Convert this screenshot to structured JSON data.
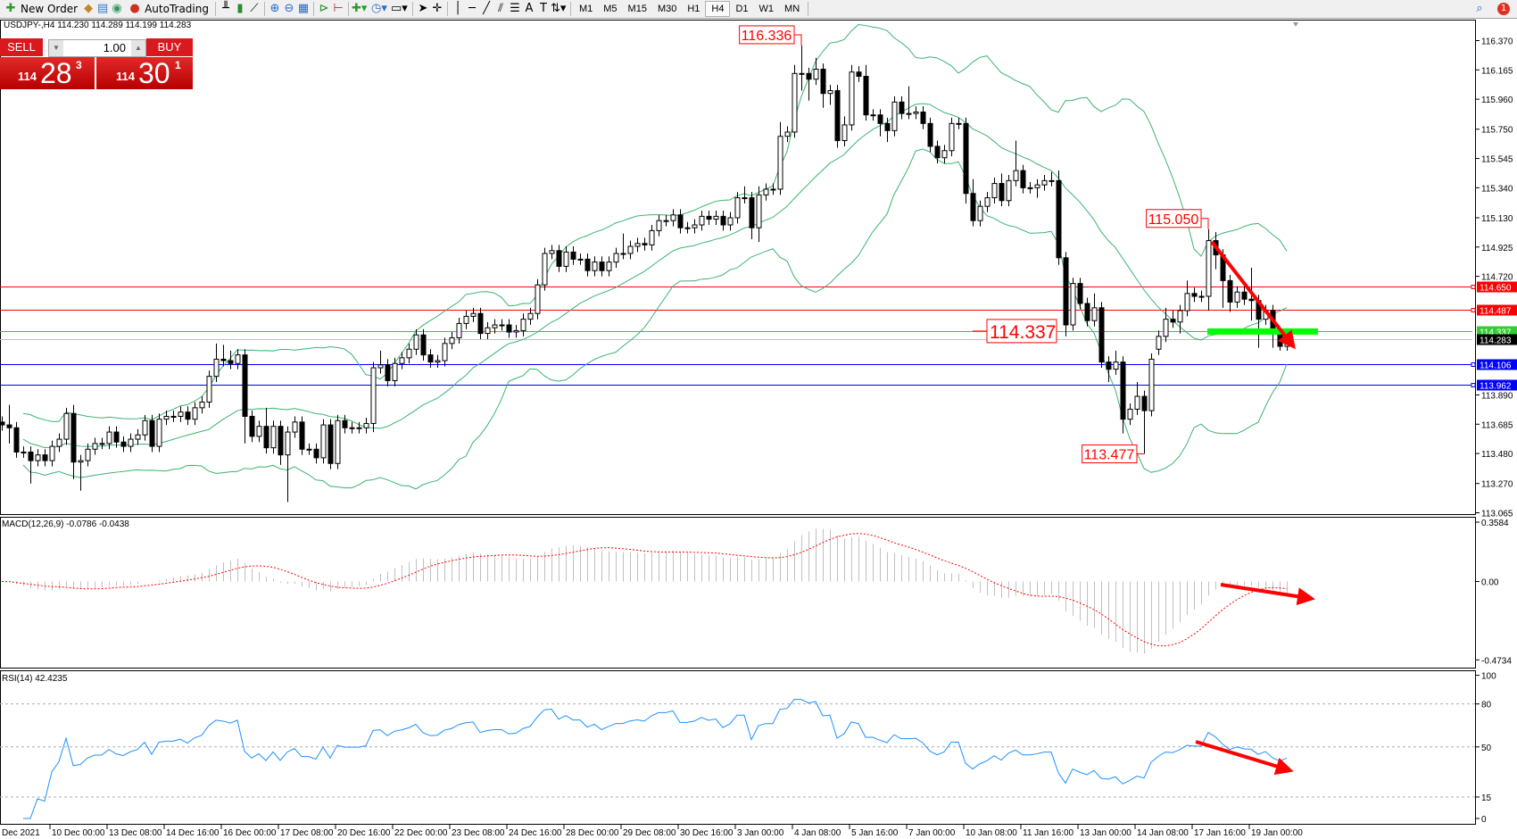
{
  "toolbar": {
    "new_order": "New Order",
    "autotrading": "AutoTrading",
    "timeframes": [
      "M1",
      "M5",
      "M15",
      "M30",
      "H1",
      "H4",
      "D1",
      "W1",
      "MN"
    ],
    "selected_timeframe": "H4",
    "notification_count": "1"
  },
  "symbol_line": "USDJPY-,H4  114.230 114.289 114.199 114.283",
  "one_click": {
    "sell_label": "SELL",
    "buy_label": "BUY",
    "lots": "1.00",
    "sell_price": {
      "big_figure": "114",
      "pips": "28",
      "point": "3"
    },
    "buy_price": {
      "big_figure": "114",
      "pips": "30",
      "point": "1"
    },
    "color": "#d9191e"
  },
  "chart_data": {
    "type": "candlestick",
    "price_axis_ticks": [
      "116.370",
      "116.165",
      "115.960",
      "115.750",
      "115.545",
      "115.340",
      "115.130",
      "114.925",
      "114.720",
      "113.890",
      "113.685",
      "113.480",
      "113.270",
      "113.065"
    ],
    "ylim": [
      113.065,
      116.37
    ],
    "time_labels": [
      "Dec 2021",
      "10 Dec 00:00",
      "13 Dec 08:00",
      "14 Dec 16:00",
      "16 Dec 00:00",
      "17 Dec 08:00",
      "20 Dec 16:00",
      "22 Dec 00:00",
      "23 Dec 08:00",
      "24 Dec 16:00",
      "28 Dec 00:00",
      "29 Dec 08:00",
      "30 Dec 16:00",
      "3 Jan 00:00",
      "4 Jan 08:00",
      "5 Jan 16:00",
      "7 Jan 00:00",
      "10 Jan 08:00",
      "11 Jan 16:00",
      "13 Jan 00:00",
      "14 Jan 08:00",
      "17 Jan 16:00",
      "19 Jan 00:00"
    ],
    "hlines": [
      {
        "price": 114.65,
        "label": "114.650",
        "color": "#ff0000"
      },
      {
        "price": 114.487,
        "label": "114.487",
        "color": "#ff0000"
      },
      {
        "price": 114.337,
        "label": "114.337",
        "color": "#32cd32"
      },
      {
        "price": 114.283,
        "label": "114.283",
        "color": "#000000",
        "line": "#c0c0c0"
      },
      {
        "price": 114.106,
        "label": "114.106",
        "color": "#0000ff"
      },
      {
        "price": 113.962,
        "label": "113.962",
        "color": "#0000ff"
      }
    ],
    "price_callouts": [
      {
        "label": "116.336",
        "bar": 112
      },
      {
        "label": "115.050",
        "bar": 169
      },
      {
        "label": "113.477",
        "bar": 160
      }
    ],
    "level_callout": {
      "label": "114.337",
      "price": 114.337
    },
    "support_zone": {
      "price": 114.337,
      "color": "#00ff00"
    },
    "band_color": "#3cb371",
    "arrow_color": "#ff0000",
    "ohlc": [
      [
        113.7,
        113.74,
        113.64,
        113.68
      ],
      [
        113.68,
        113.82,
        113.55,
        113.66
      ],
      [
        113.66,
        113.7,
        113.45,
        113.49
      ],
      [
        113.49,
        113.53,
        113.45,
        113.49
      ],
      [
        113.49,
        113.53,
        113.27,
        113.43
      ],
      [
        113.43,
        113.51,
        113.39,
        113.47
      ],
      [
        113.47,
        113.51,
        113.39,
        113.43
      ],
      [
        113.43,
        113.57,
        113.39,
        113.53
      ],
      [
        113.53,
        113.62,
        113.49,
        113.58
      ],
      [
        113.58,
        113.8,
        113.54,
        113.76
      ],
      [
        113.76,
        113.82,
        113.3,
        113.42
      ],
      [
        113.42,
        113.47,
        113.22,
        113.43
      ],
      [
        113.43,
        113.55,
        113.39,
        113.51
      ],
      [
        113.51,
        113.59,
        113.47,
        113.55
      ],
      [
        113.55,
        113.59,
        113.51,
        113.55
      ],
      [
        113.55,
        113.67,
        113.51,
        113.63
      ],
      [
        113.63,
        113.67,
        113.52,
        113.56
      ],
      [
        113.56,
        113.6,
        113.49,
        113.53
      ],
      [
        113.53,
        113.62,
        113.49,
        113.58
      ],
      [
        113.58,
        113.65,
        113.54,
        113.61
      ],
      [
        113.61,
        113.75,
        113.57,
        113.71
      ],
      [
        113.71,
        113.75,
        113.49,
        113.53
      ],
      [
        113.53,
        113.76,
        113.49,
        113.72
      ],
      [
        113.72,
        113.78,
        113.68,
        113.74
      ],
      [
        113.74,
        113.78,
        113.7,
        113.74
      ],
      [
        113.74,
        113.81,
        113.7,
        113.77
      ],
      [
        113.77,
        113.81,
        113.68,
        113.72
      ],
      [
        113.72,
        113.84,
        113.68,
        113.8
      ],
      [
        113.8,
        113.88,
        113.76,
        113.84
      ],
      [
        113.84,
        114.06,
        113.8,
        114.02
      ],
      [
        114.02,
        114.25,
        113.98,
        114.14
      ],
      [
        114.14,
        114.24,
        114.09,
        114.13
      ],
      [
        114.13,
        114.2,
        114.07,
        114.11
      ],
      [
        114.11,
        114.21,
        114.07,
        114.17
      ],
      [
        114.17,
        114.21,
        113.55,
        113.74
      ],
      [
        113.74,
        113.78,
        113.56,
        113.6
      ],
      [
        113.6,
        113.71,
        113.56,
        113.67
      ],
      [
        113.67,
        113.8,
        113.48,
        113.52
      ],
      [
        113.52,
        113.71,
        113.48,
        113.67
      ],
      [
        113.67,
        113.71,
        113.4,
        113.47
      ],
      [
        113.47,
        113.67,
        113.14,
        113.63
      ],
      [
        113.63,
        113.74,
        113.59,
        113.7
      ],
      [
        113.7,
        113.74,
        113.47,
        113.51
      ],
      [
        113.51,
        113.55,
        113.47,
        113.51
      ],
      [
        113.51,
        113.55,
        113.41,
        113.45
      ],
      [
        113.45,
        113.72,
        113.41,
        113.68
      ],
      [
        113.68,
        113.72,
        113.37,
        113.41
      ],
      [
        113.41,
        113.75,
        113.37,
        113.71
      ],
      [
        113.71,
        113.75,
        113.62,
        113.66
      ],
      [
        113.66,
        113.7,
        113.62,
        113.66
      ],
      [
        113.66,
        113.7,
        113.62,
        113.66
      ],
      [
        113.66,
        113.73,
        113.62,
        113.69
      ],
      [
        113.69,
        114.12,
        113.63,
        114.08
      ],
      [
        114.08,
        114.2,
        114.04,
        114.1
      ],
      [
        114.1,
        114.14,
        113.95,
        113.99
      ],
      [
        113.99,
        114.15,
        113.95,
        114.11
      ],
      [
        114.11,
        114.19,
        114.07,
        114.15
      ],
      [
        114.15,
        114.25,
        114.11,
        114.21
      ],
      [
        114.21,
        114.35,
        114.17,
        114.31
      ],
      [
        114.31,
        114.35,
        114.13,
        114.17
      ],
      [
        114.17,
        114.21,
        114.08,
        114.12
      ],
      [
        114.12,
        114.17,
        114.08,
        114.13
      ],
      [
        114.13,
        114.29,
        114.09,
        114.25
      ],
      [
        114.25,
        114.33,
        114.21,
        114.29
      ],
      [
        114.29,
        114.43,
        114.25,
        114.39
      ],
      [
        114.39,
        114.48,
        114.35,
        114.44
      ],
      [
        114.44,
        114.5,
        114.4,
        114.46
      ],
      [
        114.46,
        114.5,
        114.28,
        114.32
      ],
      [
        114.32,
        114.4,
        114.28,
        114.36
      ],
      [
        114.36,
        114.42,
        114.32,
        114.38
      ],
      [
        114.38,
        114.42,
        114.34,
        114.38
      ],
      [
        114.38,
        114.42,
        114.29,
        114.33
      ],
      [
        114.33,
        114.38,
        114.29,
        114.34
      ],
      [
        114.34,
        114.46,
        114.3,
        114.42
      ],
      [
        114.42,
        114.5,
        114.38,
        114.46
      ],
      [
        114.46,
        114.7,
        114.42,
        114.66
      ],
      [
        114.66,
        114.92,
        114.62,
        114.88
      ],
      [
        114.88,
        114.94,
        114.84,
        114.9
      ],
      [
        114.9,
        114.94,
        114.75,
        114.79
      ],
      [
        114.79,
        114.93,
        114.75,
        114.89
      ],
      [
        114.89,
        114.93,
        114.8,
        114.84
      ],
      [
        114.84,
        114.88,
        114.8,
        114.84
      ],
      [
        114.84,
        114.88,
        114.72,
        114.76
      ],
      [
        114.76,
        114.86,
        114.72,
        114.82
      ],
      [
        114.82,
        114.86,
        114.72,
        114.76
      ],
      [
        114.76,
        114.86,
        114.72,
        114.82
      ],
      [
        114.82,
        114.92,
        114.78,
        114.88
      ],
      [
        114.88,
        115.02,
        114.84,
        114.88
      ],
      [
        114.88,
        114.97,
        114.84,
        114.93
      ],
      [
        114.93,
        114.99,
        114.89,
        114.95
      ],
      [
        114.95,
        114.99,
        114.9,
        114.94
      ],
      [
        114.94,
        115.08,
        114.9,
        115.04
      ],
      [
        115.04,
        115.15,
        115.0,
        115.11
      ],
      [
        115.11,
        115.15,
        115.07,
        115.11
      ],
      [
        115.11,
        115.19,
        115.07,
        115.15
      ],
      [
        115.15,
        115.19,
        115.02,
        115.06
      ],
      [
        115.06,
        115.1,
        115.02,
        115.06
      ],
      [
        115.06,
        115.12,
        115.02,
        115.08
      ],
      [
        115.08,
        115.18,
        115.04,
        115.14
      ],
      [
        115.14,
        115.18,
        115.08,
        115.12
      ],
      [
        115.12,
        115.18,
        115.08,
        115.14
      ],
      [
        115.14,
        115.18,
        115.04,
        115.08
      ],
      [
        115.08,
        115.17,
        115.04,
        115.13
      ],
      [
        115.13,
        115.31,
        115.09,
        115.27
      ],
      [
        115.27,
        115.35,
        115.23,
        115.27
      ],
      [
        115.27,
        115.31,
        114.98,
        115.06
      ],
      [
        115.06,
        115.35,
        114.96,
        115.29
      ],
      [
        115.29,
        115.37,
        115.25,
        115.33
      ],
      [
        115.33,
        115.37,
        115.29,
        115.33
      ],
      [
        115.33,
        115.8,
        115.29,
        115.7
      ],
      [
        115.7,
        115.77,
        115.66,
        115.73
      ],
      [
        115.73,
        116.2,
        115.69,
        116.14
      ],
      [
        116.14,
        116.336,
        116.02,
        116.14
      ],
      [
        116.14,
        116.18,
        115.95,
        116.1
      ],
      [
        116.1,
        116.25,
        116.06,
        116.17
      ],
      [
        116.17,
        116.21,
        115.9,
        116.0
      ],
      [
        116.0,
        116.06,
        115.92,
        116.02
      ],
      [
        116.02,
        116.06,
        115.62,
        115.67
      ],
      [
        115.67,
        115.84,
        115.63,
        115.78
      ],
      [
        115.78,
        116.2,
        115.74,
        116.15
      ],
      [
        116.15,
        116.19,
        116.08,
        116.12
      ],
      [
        116.12,
        116.2,
        115.81,
        115.85
      ],
      [
        115.85,
        115.89,
        115.81,
        115.85
      ],
      [
        115.85,
        115.89,
        115.7,
        115.79
      ],
      [
        115.79,
        115.83,
        115.66,
        115.74
      ],
      [
        115.74,
        115.98,
        115.7,
        115.94
      ],
      [
        115.94,
        115.98,
        115.82,
        115.86
      ],
      [
        115.86,
        116.05,
        115.82,
        115.86
      ],
      [
        115.86,
        115.91,
        115.82,
        115.87
      ],
      [
        115.87,
        115.91,
        115.75,
        115.79
      ],
      [
        115.79,
        115.83,
        115.59,
        115.63
      ],
      [
        115.63,
        115.67,
        115.51,
        115.55
      ],
      [
        115.55,
        115.64,
        115.51,
        115.6
      ],
      [
        115.6,
        115.83,
        115.56,
        115.79
      ],
      [
        115.79,
        115.83,
        115.75,
        115.79
      ],
      [
        115.79,
        115.83,
        115.23,
        115.3
      ],
      [
        115.3,
        115.4,
        115.07,
        115.11
      ],
      [
        115.11,
        115.25,
        115.07,
        115.21
      ],
      [
        115.21,
        115.31,
        115.17,
        115.27
      ],
      [
        115.27,
        115.41,
        115.23,
        115.37
      ],
      [
        115.37,
        115.44,
        115.21,
        115.25
      ],
      [
        115.25,
        115.43,
        115.21,
        115.39
      ],
      [
        115.39,
        115.67,
        115.35,
        115.46
      ],
      [
        115.46,
        115.5,
        115.3,
        115.34
      ],
      [
        115.34,
        115.38,
        115.3,
        115.34
      ],
      [
        115.34,
        115.4,
        115.27,
        115.36
      ],
      [
        115.36,
        115.43,
        115.32,
        115.39
      ],
      [
        115.39,
        115.45,
        115.35,
        115.39
      ],
      [
        115.39,
        115.46,
        114.8,
        114.85
      ],
      [
        114.85,
        114.89,
        114.3,
        114.38
      ],
      [
        114.38,
        114.71,
        114.34,
        114.67
      ],
      [
        114.67,
        114.71,
        114.49,
        114.53
      ],
      [
        114.53,
        114.57,
        114.37,
        114.41
      ],
      [
        114.41,
        114.6,
        114.37,
        114.5
      ],
      [
        114.5,
        114.54,
        114.08,
        114.12
      ],
      [
        114.12,
        114.16,
        113.98,
        114.07
      ],
      [
        114.07,
        114.2,
        114.03,
        114.12
      ],
      [
        114.12,
        114.16,
        113.62,
        113.72
      ],
      [
        113.72,
        113.83,
        113.68,
        113.79
      ],
      [
        113.79,
        113.98,
        113.75,
        113.88
      ],
      [
        113.88,
        113.92,
        113.477,
        113.78
      ],
      [
        113.78,
        114.18,
        113.74,
        114.14
      ],
      [
        114.21,
        114.34,
        114.17,
        114.3
      ],
      [
        114.3,
        114.5,
        114.26,
        114.42
      ],
      [
        114.42,
        114.48,
        114.36,
        114.4
      ],
      [
        114.4,
        114.52,
        114.32,
        114.48
      ],
      [
        114.48,
        114.69,
        114.44,
        114.6
      ],
      [
        114.6,
        114.64,
        114.54,
        114.58
      ],
      [
        114.58,
        114.62,
        114.54,
        114.58
      ],
      [
        114.58,
        115.05,
        114.48,
        114.97
      ],
      [
        114.97,
        115.03,
        114.77,
        114.87
      ],
      [
        114.87,
        114.91,
        114.5,
        114.69
      ],
      [
        114.69,
        114.73,
        114.47,
        114.54
      ],
      [
        114.54,
        114.65,
        114.5,
        114.61
      ],
      [
        114.61,
        114.65,
        114.52,
        114.56
      ],
      [
        114.56,
        114.78,
        114.41,
        114.55
      ],
      [
        114.55,
        114.59,
        114.22,
        114.42
      ],
      [
        114.42,
        114.52,
        114.38,
        114.48
      ],
      [
        114.48,
        114.52,
        114.22,
        114.32
      ],
      [
        114.32,
        114.36,
        114.2,
        114.23
      ],
      [
        114.23,
        114.29,
        114.199,
        114.283
      ]
    ],
    "macd": {
      "label": "MACD(12,26,9) -0.0786 -0.0438",
      "axis_ticks": [
        "0.3584",
        "0.00",
        "-0.4734"
      ],
      "ylim": [
        -0.4734,
        0.3584
      ],
      "histogram_color": "#c0c0c0",
      "signal_color": "#ff0000"
    },
    "rsi": {
      "label": "RSI(14) 42.4235",
      "axis_ticks": [
        "100",
        "80",
        "50",
        "15",
        "0"
      ],
      "levels": [
        80,
        50,
        15
      ],
      "ylim": [
        0,
        100
      ],
      "color": "#1e90ff"
    }
  }
}
